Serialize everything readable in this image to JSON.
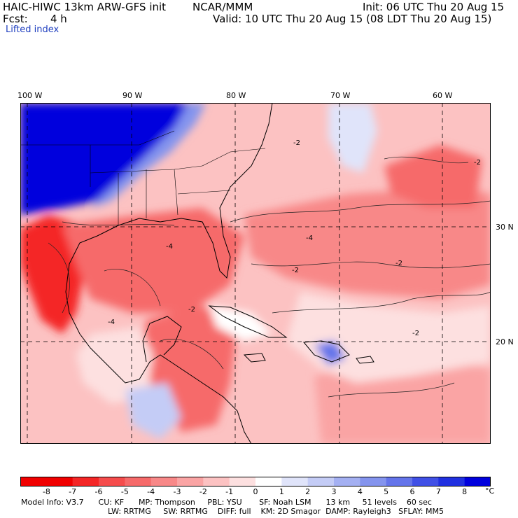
{
  "header": {
    "model": "HAIC-HIWC 13km ARW-GFS init",
    "org": "NCAR/MMM",
    "init": "Init: 06 UTC Thu 20 Aug 15",
    "fcst_label": "Fcst:",
    "fcst_value": "4 h",
    "valid": "Valid: 10 UTC Thu 20 Aug 15 (08 LDT Thu 20 Aug 15)",
    "field": "Lifted index"
  },
  "map": {
    "lon_labels": [
      "100 W",
      "90 W",
      "80 W",
      "70 W",
      "60 W"
    ],
    "lat_labels": [
      "30 N",
      "20 N"
    ],
    "contour_labels": [
      "-2",
      "-2",
      "-2",
      "-2",
      "-4",
      "-4",
      "-4",
      "-2",
      "-2"
    ]
  },
  "colorbar": {
    "ticks": [
      "-8",
      "-7",
      "-6",
      "-5",
      "-4",
      "-3",
      "-2",
      "-1",
      "0",
      "1",
      "2",
      "3",
      "4",
      "5",
      "6",
      "7",
      "8"
    ],
    "unit": "°C",
    "colors": [
      "#f00000",
      "#f42626",
      "#f54c4c",
      "#f66a6a",
      "#f88888",
      "#faa4a4",
      "#fcc2c2",
      "#fde0e0",
      "#ffffff",
      "#e0e4fa",
      "#c4ccf6",
      "#a4b0f2",
      "#8494ee",
      "#6474ea",
      "#4050e6",
      "#2030e0",
      "#0000dd"
    ]
  },
  "model_info": {
    "line1": "Model Info: V3.7      CU: KF      MP: Thompson     PBL: YSU       SF: Noah LSM      13 km     51 levels    60 sec",
    "line2": "LW: RRTMG     SW: RRTMG    DIFF: full    KM: 2D Smagor  DAMP: Rayleigh3   SFLAY: MM5"
  }
}
